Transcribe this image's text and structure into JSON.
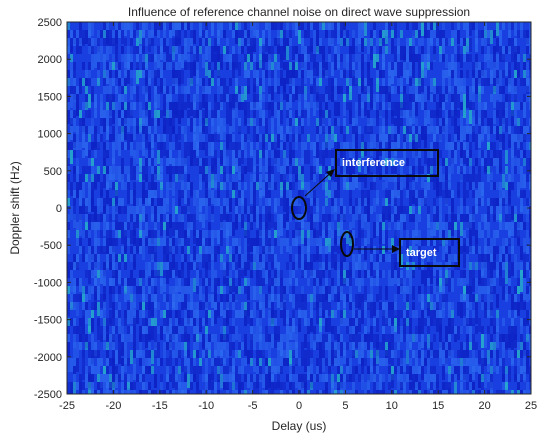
{
  "chart_data": {
    "type": "heatmap",
    "title": "Influence of reference channel noise on direct wave suppression",
    "xlabel": "Delay (us)",
    "ylabel": "Doppler shift (Hz)",
    "xlim": [
      -25,
      25
    ],
    "ylim": [
      -2500,
      2500
    ],
    "xticks": [
      -25,
      -20,
      -15,
      -10,
      -5,
      0,
      5,
      10,
      15,
      20,
      25
    ],
    "yticks": [
      2500,
      2000,
      1500,
      1000,
      500,
      0,
      -500,
      -1000,
      -1500,
      -2000,
      -2500
    ],
    "grid": false,
    "colormap": {
      "base": "#1a3fe0",
      "noise_dark": "#0d22c4",
      "noise_light": "#2d6cf0",
      "speckle": "#27b5c9"
    },
    "markers": [
      {
        "label": "interference",
        "x": 0,
        "y": 0
      },
      {
        "label": "target",
        "x": 5,
        "y": -500
      }
    ],
    "annotations": [
      {
        "text": "interference",
        "points_to": "interference"
      },
      {
        "text": "target",
        "points_to": "target"
      }
    ]
  }
}
